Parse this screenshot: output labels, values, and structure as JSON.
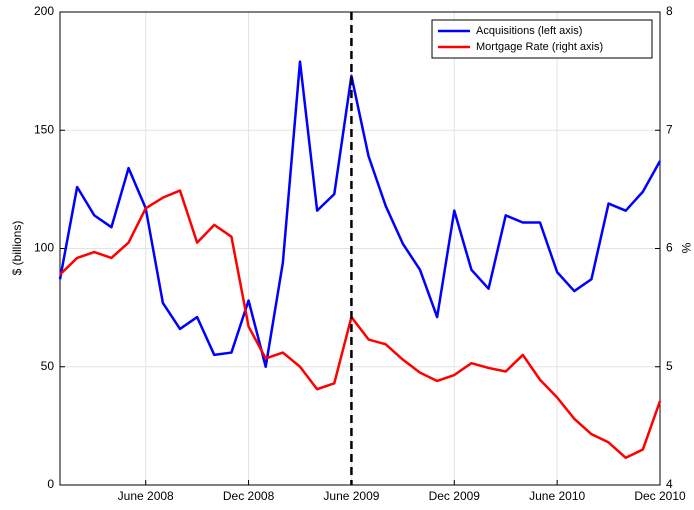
{
  "chart_data": {
    "type": "line",
    "ylabel": "$ (billions)",
    "y2label": "%",
    "x": [
      "2008-01",
      "2008-02",
      "2008-03",
      "2008-04",
      "2008-05",
      "2008-06",
      "2008-07",
      "2008-08",
      "2008-09",
      "2008-10",
      "2008-11",
      "2008-12",
      "2009-01",
      "2009-02",
      "2009-03",
      "2009-04",
      "2009-05",
      "2009-06",
      "2009-07",
      "2009-08",
      "2009-09",
      "2009-10",
      "2009-11",
      "2009-12",
      "2010-01",
      "2010-02",
      "2010-03",
      "2010-04",
      "2010-05",
      "2010-06",
      "2010-07",
      "2010-08",
      "2010-09",
      "2010-10",
      "2010-11",
      "2010-12"
    ],
    "xlim": [
      "2008-01",
      "2010-12"
    ],
    "xticks": [
      {
        "value": "2008-06",
        "label": "June 2008"
      },
      {
        "value": "2008-12",
        "label": "Dec 2008"
      },
      {
        "value": "2009-06",
        "label": "June 2009"
      },
      {
        "value": "2009-12",
        "label": "Dec 2009"
      },
      {
        "value": "2010-06",
        "label": "June 2010"
      },
      {
        "value": "2010-12",
        "label": "Dec 2010"
      }
    ],
    "ylim": [
      0,
      200
    ],
    "yticks": [
      0,
      50,
      100,
      150,
      200
    ],
    "y2lim": [
      4,
      8
    ],
    "y2ticks": [
      4,
      5,
      6,
      7,
      8
    ],
    "grid": true,
    "legend": "upper right",
    "vline_x": "2009-06",
    "series": [
      {
        "name": "Acquisitions (left axis)",
        "color": "#0000ff",
        "values": [
          87,
          126,
          114,
          109,
          134,
          117,
          77,
          66,
          71,
          55,
          56,
          78,
          50,
          94,
          179,
          116,
          123,
          173,
          139,
          118,
          102,
          91,
          71,
          116,
          91,
          83,
          114,
          111,
          111,
          90,
          82,
          87,
          119,
          116,
          124,
          137
        ]
      },
      {
        "name": "Mortgage Rate (right axis)",
        "color": "#ff0000",
        "axis": "y2",
        "values": [
          5.78,
          5.92,
          5.97,
          5.92,
          6.05,
          6.34,
          6.43,
          6.49,
          6.05,
          6.2,
          6.1,
          5.34,
          5.07,
          5.12,
          5.0,
          4.81,
          4.86,
          5.42,
          5.23,
          5.19,
          5.06,
          4.95,
          4.88,
          4.93,
          5.03,
          4.99,
          4.96,
          5.1,
          4.89,
          4.74,
          4.56,
          4.43,
          4.36,
          4.23,
          4.3,
          4.71
        ]
      }
    ]
  }
}
